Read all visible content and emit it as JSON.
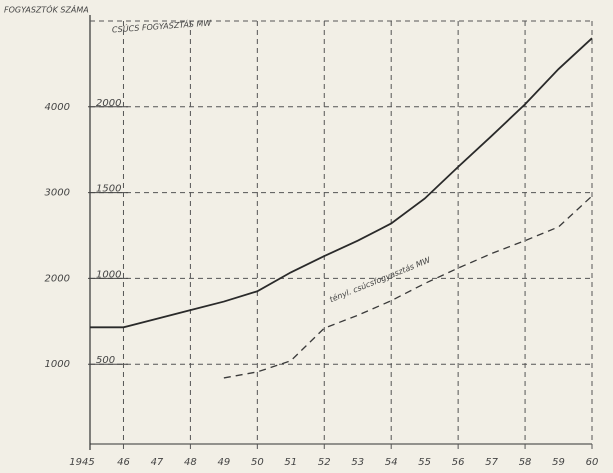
{
  "chart_data": {
    "type": "line",
    "y_label": "FOGYASZTÓK SZÁMA",
    "y2_label": "CSÚCS FOGYASZTÁS MW",
    "annotation": "tényl. csúcsfogyasztás MW",
    "x": [
      1945,
      1946,
      1947,
      1948,
      1949,
      1950,
      1951,
      1952,
      1953,
      1954,
      1955,
      1956,
      1957,
      1958,
      1959,
      1960
    ],
    "xlim": [
      1945,
      1960
    ],
    "xticks": [
      {
        "value": 1945,
        "label": "1945"
      },
      {
        "value": 1946,
        "label": "46"
      },
      {
        "value": 1947,
        "label": "47"
      },
      {
        "value": 1948,
        "label": "48"
      },
      {
        "value": 1949,
        "label": "49"
      },
      {
        "value": 1950,
        "label": "50"
      },
      {
        "value": 1951,
        "label": "51"
      },
      {
        "value": 1952,
        "label": "52"
      },
      {
        "value": 1953,
        "label": "53"
      },
      {
        "value": 1954,
        "label": "54"
      },
      {
        "value": 1955,
        "label": "55"
      },
      {
        "value": 1956,
        "label": "56"
      },
      {
        "value": 1957,
        "label": "57"
      },
      {
        "value": 1958,
        "label": "58"
      },
      {
        "value": 1959,
        "label": "59"
      },
      {
        "value": 1960,
        "label": "60"
      }
    ],
    "ylim": [
      0,
      5000
    ],
    "yticks": [
      1000,
      2000,
      3000,
      4000
    ],
    "y2lim": [
      0,
      2500
    ],
    "y2ticks": [
      500,
      1000,
      1500,
      2000
    ],
    "grid": true,
    "series": [
      {
        "color": "#2a2a2a",
        "dashed": false,
        "values": [
          1430,
          1430,
          1530,
          1630,
          1730,
          1850,
          2070,
          2260,
          2440,
          2640,
          2930,
          3300,
          3660,
          4030,
          4440,
          4800
        ]
      },
      {
        "color": "#3a3a3a",
        "dashed": true,
        "axis": "y2",
        "values": [
          null,
          null,
          null,
          null,
          420,
          455,
          520,
          710,
          785,
          870,
          970,
          1060,
          1145,
          1220,
          1300,
          1480
        ]
      }
    ]
  }
}
